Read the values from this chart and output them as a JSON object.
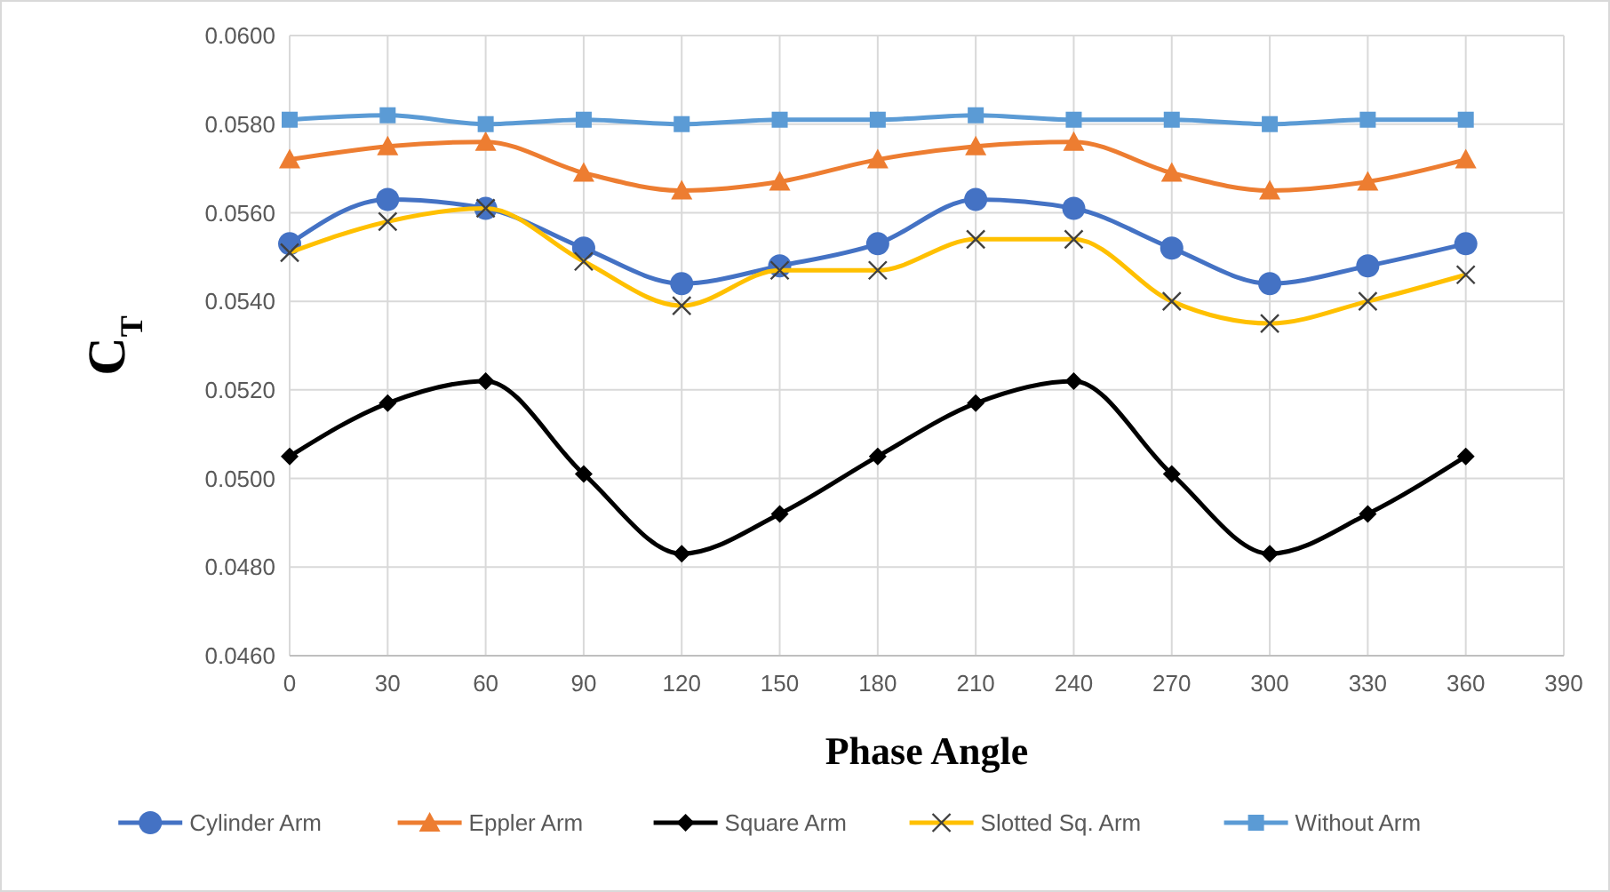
{
  "chart_data": {
    "type": "line",
    "xlabel": "Phase Angle",
    "ylabel": "C$_{T}$",
    "x": [
      0,
      30,
      60,
      90,
      120,
      150,
      180,
      210,
      240,
      270,
      300,
      330,
      360
    ],
    "xlim": [
      0,
      390
    ],
    "xticks": [
      0,
      30,
      60,
      90,
      120,
      150,
      180,
      210,
      240,
      270,
      300,
      330,
      360,
      390
    ],
    "ylim": [
      0.046,
      0.06
    ],
    "yticks": [
      {
        "value": 0.046,
        "label": "0.0460"
      },
      {
        "value": 0.048,
        "label": "0.0480"
      },
      {
        "value": 0.05,
        "label": "0.0500"
      },
      {
        "value": 0.052,
        "label": "0.0520"
      },
      {
        "value": 0.054,
        "label": "0.0540"
      },
      {
        "value": 0.056,
        "label": "0.0560"
      },
      {
        "value": 0.058,
        "label": "0.0580"
      },
      {
        "value": 0.06,
        "label": "0.0600"
      }
    ],
    "grid": true,
    "legend": "bottom",
    "line_style": "solid",
    "series": [
      {
        "name": "Cylinder Arm",
        "color": "#4472c4",
        "marker": "circle",
        "values": [
          0.0553,
          0.0563,
          0.0561,
          0.0552,
          0.0544,
          0.0548,
          0.0553,
          0.0563,
          0.0561,
          0.0552,
          0.0544,
          0.0548,
          0.0553
        ]
      },
      {
        "name": "Eppler Arm",
        "color": "#ed7d31",
        "marker": "triangle",
        "values": [
          0.0572,
          0.0575,
          0.0576,
          0.0569,
          0.0565,
          0.0567,
          0.0572,
          0.0575,
          0.0576,
          0.0569,
          0.0565,
          0.0567,
          0.0572
        ]
      },
      {
        "name": "Square Arm",
        "color": "#000000",
        "marker": "diamond",
        "values": [
          0.0505,
          0.0517,
          0.0522,
          0.0501,
          0.0483,
          0.0492,
          0.0505,
          0.0517,
          0.0522,
          0.0501,
          0.0483,
          0.0492,
          0.0505
        ]
      },
      {
        "name": "Slotted Sq. Arm",
        "color": "#ffc000",
        "marker": "cross",
        "values": [
          0.0551,
          0.0558,
          0.0561,
          0.0549,
          0.0539,
          0.0547,
          0.0547,
          0.0554,
          0.0554,
          0.054,
          0.0535,
          0.054,
          0.0546
        ]
      },
      {
        "name": "Without Arm",
        "color": "#5b9bd5",
        "marker": "square",
        "values": [
          0.0581,
          0.0582,
          0.058,
          0.0581,
          0.058,
          0.0581,
          0.0581,
          0.0582,
          0.0581,
          0.0581,
          0.058,
          0.0581,
          0.0581
        ]
      }
    ]
  }
}
